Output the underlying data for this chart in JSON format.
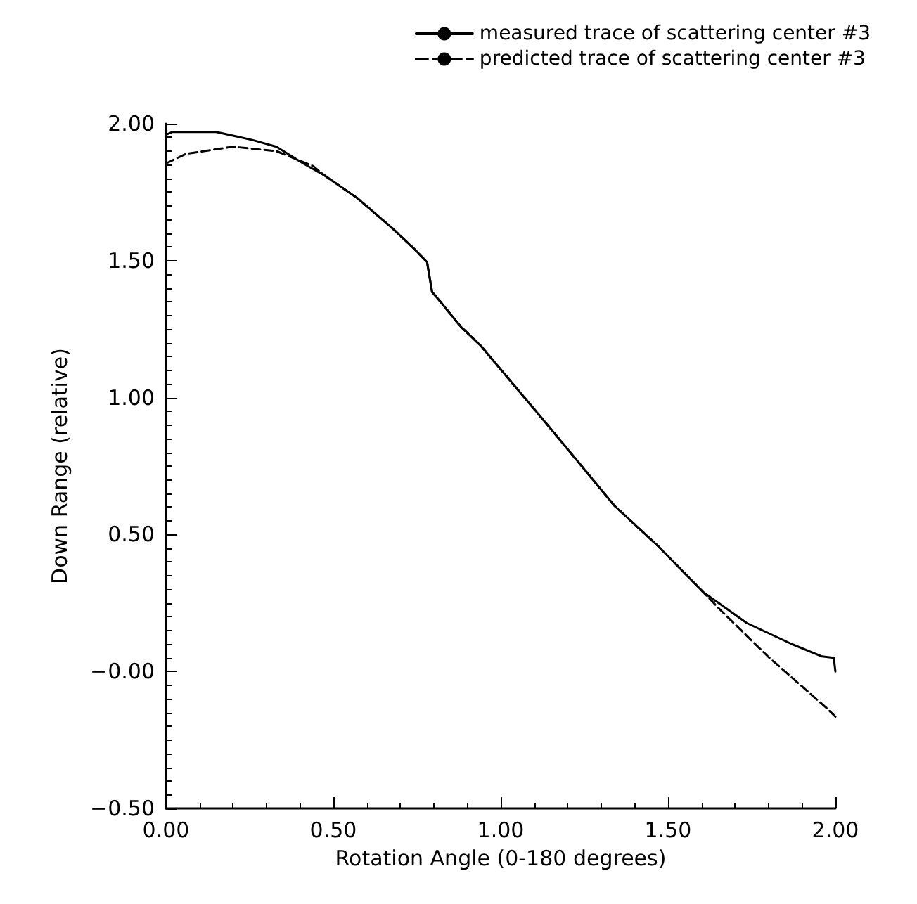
{
  "chart_data": {
    "type": "line",
    "xlabel": "Rotation Angle (0-180 degrees)",
    "ylabel": "Down Range (relative)",
    "xlim": [
      0,
      2
    ],
    "ylim": [
      -0.5,
      2
    ],
    "xticks": [
      {
        "value": 0,
        "label": "0.00"
      },
      {
        "value": 0.5,
        "label": "0.50"
      },
      {
        "value": 1,
        "label": "1.00"
      },
      {
        "value": 1.5,
        "label": "1.50"
      },
      {
        "value": 2,
        "label": "2.00"
      }
    ],
    "yticks": [
      {
        "value": -0.5,
        "label": "−0.50"
      },
      {
        "value": 0,
        "label": "−0.00"
      },
      {
        "value": 0.5,
        "label": "0.50"
      },
      {
        "value": 1,
        "label": "1.00"
      },
      {
        "value": 1.5,
        "label": "1.50"
      },
      {
        "value": 2,
        "label": "2.00"
      }
    ],
    "grid": false,
    "legend": "top right",
    "marker": "none",
    "series": [
      {
        "name": "measured trace of scattering center #3",
        "color": "#000000",
        "line_style": "solid",
        "x": [
          0,
          0.02,
          0.15,
          0.21,
          0.26,
          0.33,
          0.41,
          0.475,
          0.57,
          0.675,
          0.74,
          0.78,
          0.795,
          0.82,
          0.88,
          0.94,
          1.14,
          1.34,
          1.47,
          1.605,
          1.735,
          1.87,
          1.96,
          1.995,
          2.0
        ],
        "values": [
          1.96,
          1.97,
          1.97,
          1.954,
          1.94,
          1.916,
          1.855,
          1.81,
          1.73,
          1.62,
          1.545,
          1.495,
          1.386,
          1.35,
          1.26,
          1.19,
          0.9,
          0.605,
          0.458,
          0.29,
          0.177,
          0.1,
          0.055,
          0.05,
          0.0
        ]
      },
      {
        "name": "predicted trace of scattering center #3",
        "color": "#000000",
        "line_style": "dashed",
        "x": [
          0,
          0.06,
          0.2,
          0.33,
          0.44,
          0.475,
          0.57,
          0.675,
          0.74,
          0.78,
          0.795,
          0.82,
          0.88,
          0.94,
          1.14,
          1.34,
          1.47,
          1.605,
          1.656,
          1.8,
          1.975,
          2.0
        ],
        "values": [
          1.855,
          1.89,
          1.916,
          1.9,
          1.845,
          1.81,
          1.73,
          1.62,
          1.545,
          1.495,
          1.386,
          1.35,
          1.26,
          1.19,
          0.9,
          0.605,
          0.458,
          0.29,
          0.225,
          0.053,
          -0.135,
          -0.165
        ]
      }
    ]
  }
}
